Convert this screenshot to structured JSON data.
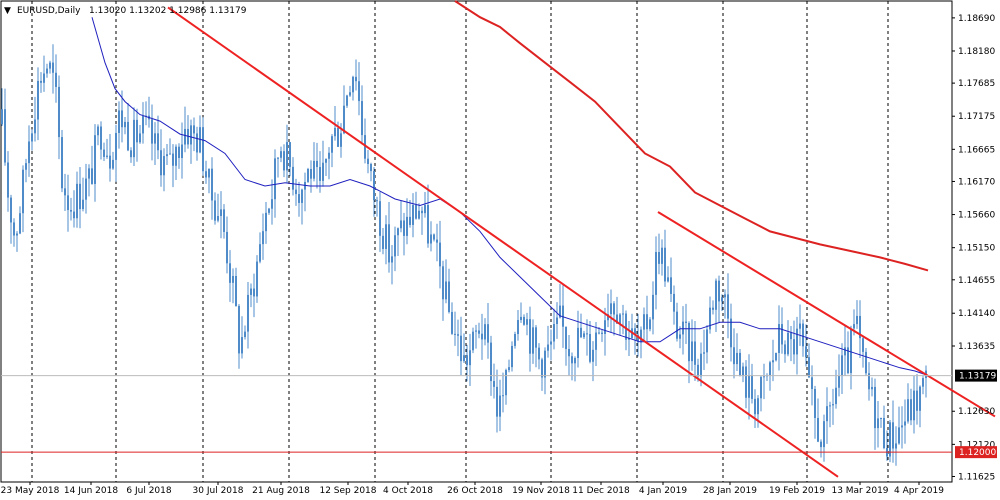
{
  "header": {
    "arrow": "▼",
    "symbol": "EURUSD,Daily",
    "ohlc": "1.13020 1.13202 1.12986 1.13179"
  },
  "colors": {
    "background": "#ffffff",
    "candle": "#4f8bc9",
    "ma_fast": "#1f1fbf",
    "ma_slow": "#dd2222",
    "trendline": "#ee2222",
    "support": "#dd2222",
    "grid": "#000000",
    "price_label_bg": "#000000",
    "support_label_bg": "#dd2222"
  },
  "chart_data": {
    "type": "candlestick",
    "symbol": "EURUSD",
    "timeframe": "Daily",
    "ylim": [
      1.1162,
      1.1895
    ],
    "y_ticks": [
      "1.18690",
      "1.18180",
      "1.17685",
      "1.17175",
      "1.16665",
      "1.16170",
      "1.15660",
      "1.15150",
      "1.14655",
      "1.14140",
      "1.13635",
      "1.12630",
      "1.12120",
      "1.11625"
    ],
    "x_ticks": [
      "23 May 2018",
      "14 Jun 2018",
      "6 Jul 2018",
      "30 Jul 2018",
      "21 Aug 2018",
      "12 Sep 2018",
      "4 Oct 2018",
      "26 Oct 2018",
      "19 Nov 2018",
      "11 Dec 2018",
      "4 Jan 2019",
      "28 Jan 2019",
      "19 Feb 2019",
      "13 Mar 2019",
      "4 Apr 2019"
    ],
    "current_price": "1.13179",
    "support_level": "1.12000",
    "price_path": [
      [
        0,
        1.174
      ],
      [
        8,
        1.16
      ],
      [
        15,
        1.153
      ],
      [
        22,
        1.16
      ],
      [
        30,
        1.17
      ],
      [
        40,
        1.178
      ],
      [
        48,
        1.18
      ],
      [
        55,
        1.176
      ],
      [
        62,
        1.162
      ],
      [
        70,
        1.158
      ],
      [
        80,
        1.16
      ],
      [
        90,
        1.162
      ],
      [
        100,
        1.17
      ],
      [
        110,
        1.166
      ],
      [
        120,
        1.172
      ],
      [
        132,
        1.168
      ],
      [
        145,
        1.17
      ],
      [
        158,
        1.166
      ],
      [
        170,
        1.164
      ],
      [
        185,
        1.17
      ],
      [
        200,
        1.168
      ],
      [
        210,
        1.16
      ],
      [
        222,
        1.156
      ],
      [
        232,
        1.146
      ],
      [
        240,
        1.136
      ],
      [
        248,
        1.142
      ],
      [
        256,
        1.148
      ],
      [
        264,
        1.156
      ],
      [
        272,
        1.16
      ],
      [
        280,
        1.168
      ],
      [
        290,
        1.164
      ],
      [
        300,
        1.16
      ],
      [
        310,
        1.164
      ],
      [
        320,
        1.16
      ],
      [
        330,
        1.168
      ],
      [
        340,
        1.17
      ],
      [
        348,
        1.177
      ],
      [
        355,
        1.18
      ],
      [
        362,
        1.17
      ],
      [
        370,
        1.162
      ],
      [
        380,
        1.156
      ],
      [
        390,
        1.15
      ],
      [
        400,
        1.154
      ],
      [
        410,
        1.156
      ],
      [
        420,
        1.158
      ],
      [
        430,
        1.153
      ],
      [
        440,
        1.148
      ],
      [
        448,
        1.142
      ],
      [
        456,
        1.138
      ],
      [
        464,
        1.134
      ],
      [
        472,
        1.136
      ],
      [
        480,
        1.14
      ],
      [
        490,
        1.134
      ],
      [
        498,
        1.126
      ],
      [
        506,
        1.13
      ],
      [
        514,
        1.14
      ],
      [
        522,
        1.144
      ],
      [
        530,
        1.138
      ],
      [
        540,
        1.134
      ],
      [
        550,
        1.136
      ],
      [
        560,
        1.14
      ],
      [
        570,
        1.136
      ],
      [
        580,
        1.138
      ],
      [
        590,
        1.136
      ],
      [
        600,
        1.14
      ],
      [
        610,
        1.144
      ],
      [
        620,
        1.142
      ],
      [
        630,
        1.138
      ],
      [
        640,
        1.136
      ],
      [
        650,
        1.142
      ],
      [
        658,
        1.152
      ],
      [
        666,
        1.148
      ],
      [
        674,
        1.14
      ],
      [
        682,
        1.138
      ],
      [
        690,
        1.136
      ],
      [
        700,
        1.134
      ],
      [
        708,
        1.14
      ],
      [
        716,
        1.146
      ],
      [
        724,
        1.144
      ],
      [
        732,
        1.138
      ],
      [
        740,
        1.132
      ],
      [
        748,
        1.13
      ],
      [
        756,
        1.128
      ],
      [
        764,
        1.13
      ],
      [
        772,
        1.134
      ],
      [
        780,
        1.138
      ],
      [
        790,
        1.136
      ],
      [
        800,
        1.138
      ],
      [
        808,
        1.13
      ],
      [
        816,
        1.124
      ],
      [
        824,
        1.122
      ],
      [
        832,
        1.128
      ],
      [
        840,
        1.132
      ],
      [
        848,
        1.134
      ],
      [
        856,
        1.14
      ],
      [
        864,
        1.132
      ],
      [
        872,
        1.128
      ],
      [
        880,
        1.124
      ],
      [
        888,
        1.122
      ],
      [
        896,
        1.123
      ],
      [
        904,
        1.125
      ],
      [
        912,
        1.127
      ],
      [
        920,
        1.129
      ],
      [
        928,
        1.1318
      ]
    ],
    "ma_fast": [
      [
        92,
        1.187
      ],
      [
        105,
        1.18
      ],
      [
        115,
        1.176
      ],
      [
        125,
        1.174
      ],
      [
        140,
        1.172
      ],
      [
        160,
        1.171
      ],
      [
        180,
        1.169
      ],
      [
        205,
        1.168
      ],
      [
        225,
        1.166
      ],
      [
        245,
        1.162
      ],
      [
        265,
        1.161
      ],
      [
        285,
        1.1615
      ],
      [
        310,
        1.161
      ],
      [
        330,
        1.161
      ],
      [
        350,
        1.162
      ],
      [
        370,
        1.161
      ],
      [
        395,
        1.159
      ],
      [
        420,
        1.158
      ],
      [
        440,
        1.159
      ],
      [
        460,
        1.157
      ],
      [
        480,
        1.154
      ],
      [
        500,
        1.15
      ],
      [
        520,
        1.147
      ],
      [
        540,
        1.144
      ],
      [
        560,
        1.141
      ],
      [
        580,
        1.14
      ],
      [
        600,
        1.139
      ],
      [
        620,
        1.138
      ],
      [
        640,
        1.137
      ],
      [
        660,
        1.137
      ],
      [
        680,
        1.139
      ],
      [
        700,
        1.139
      ],
      [
        720,
        1.14
      ],
      [
        740,
        1.14
      ],
      [
        760,
        1.139
      ],
      [
        780,
        1.139
      ],
      [
        800,
        1.138
      ],
      [
        820,
        1.137
      ],
      [
        840,
        1.136
      ],
      [
        860,
        1.135
      ],
      [
        880,
        1.134
      ],
      [
        900,
        1.133
      ],
      [
        915,
        1.1325
      ],
      [
        928,
        1.1318
      ]
    ],
    "ma_slow": [
      [
        455,
        1.1895
      ],
      [
        480,
        1.187
      ],
      [
        500,
        1.1855
      ],
      [
        520,
        1.183
      ],
      [
        545,
        1.18
      ],
      [
        570,
        1.177
      ],
      [
        595,
        1.174
      ],
      [
        620,
        1.17
      ],
      [
        645,
        1.166
      ],
      [
        670,
        1.164
      ],
      [
        695,
        1.16
      ],
      [
        720,
        1.158
      ],
      [
        745,
        1.156
      ],
      [
        770,
        1.154
      ],
      [
        795,
        1.153
      ],
      [
        820,
        1.152
      ],
      [
        850,
        1.151
      ],
      [
        880,
        1.15
      ],
      [
        905,
        1.149
      ],
      [
        928,
        1.148
      ]
    ],
    "trendlines": [
      {
        "from": [
          168,
          1.1885
        ],
        "to": [
          838,
          1.1162
        ]
      },
      {
        "from": [
          658,
          1.157
        ],
        "to": [
          995,
          1.1255
        ]
      }
    ]
  }
}
